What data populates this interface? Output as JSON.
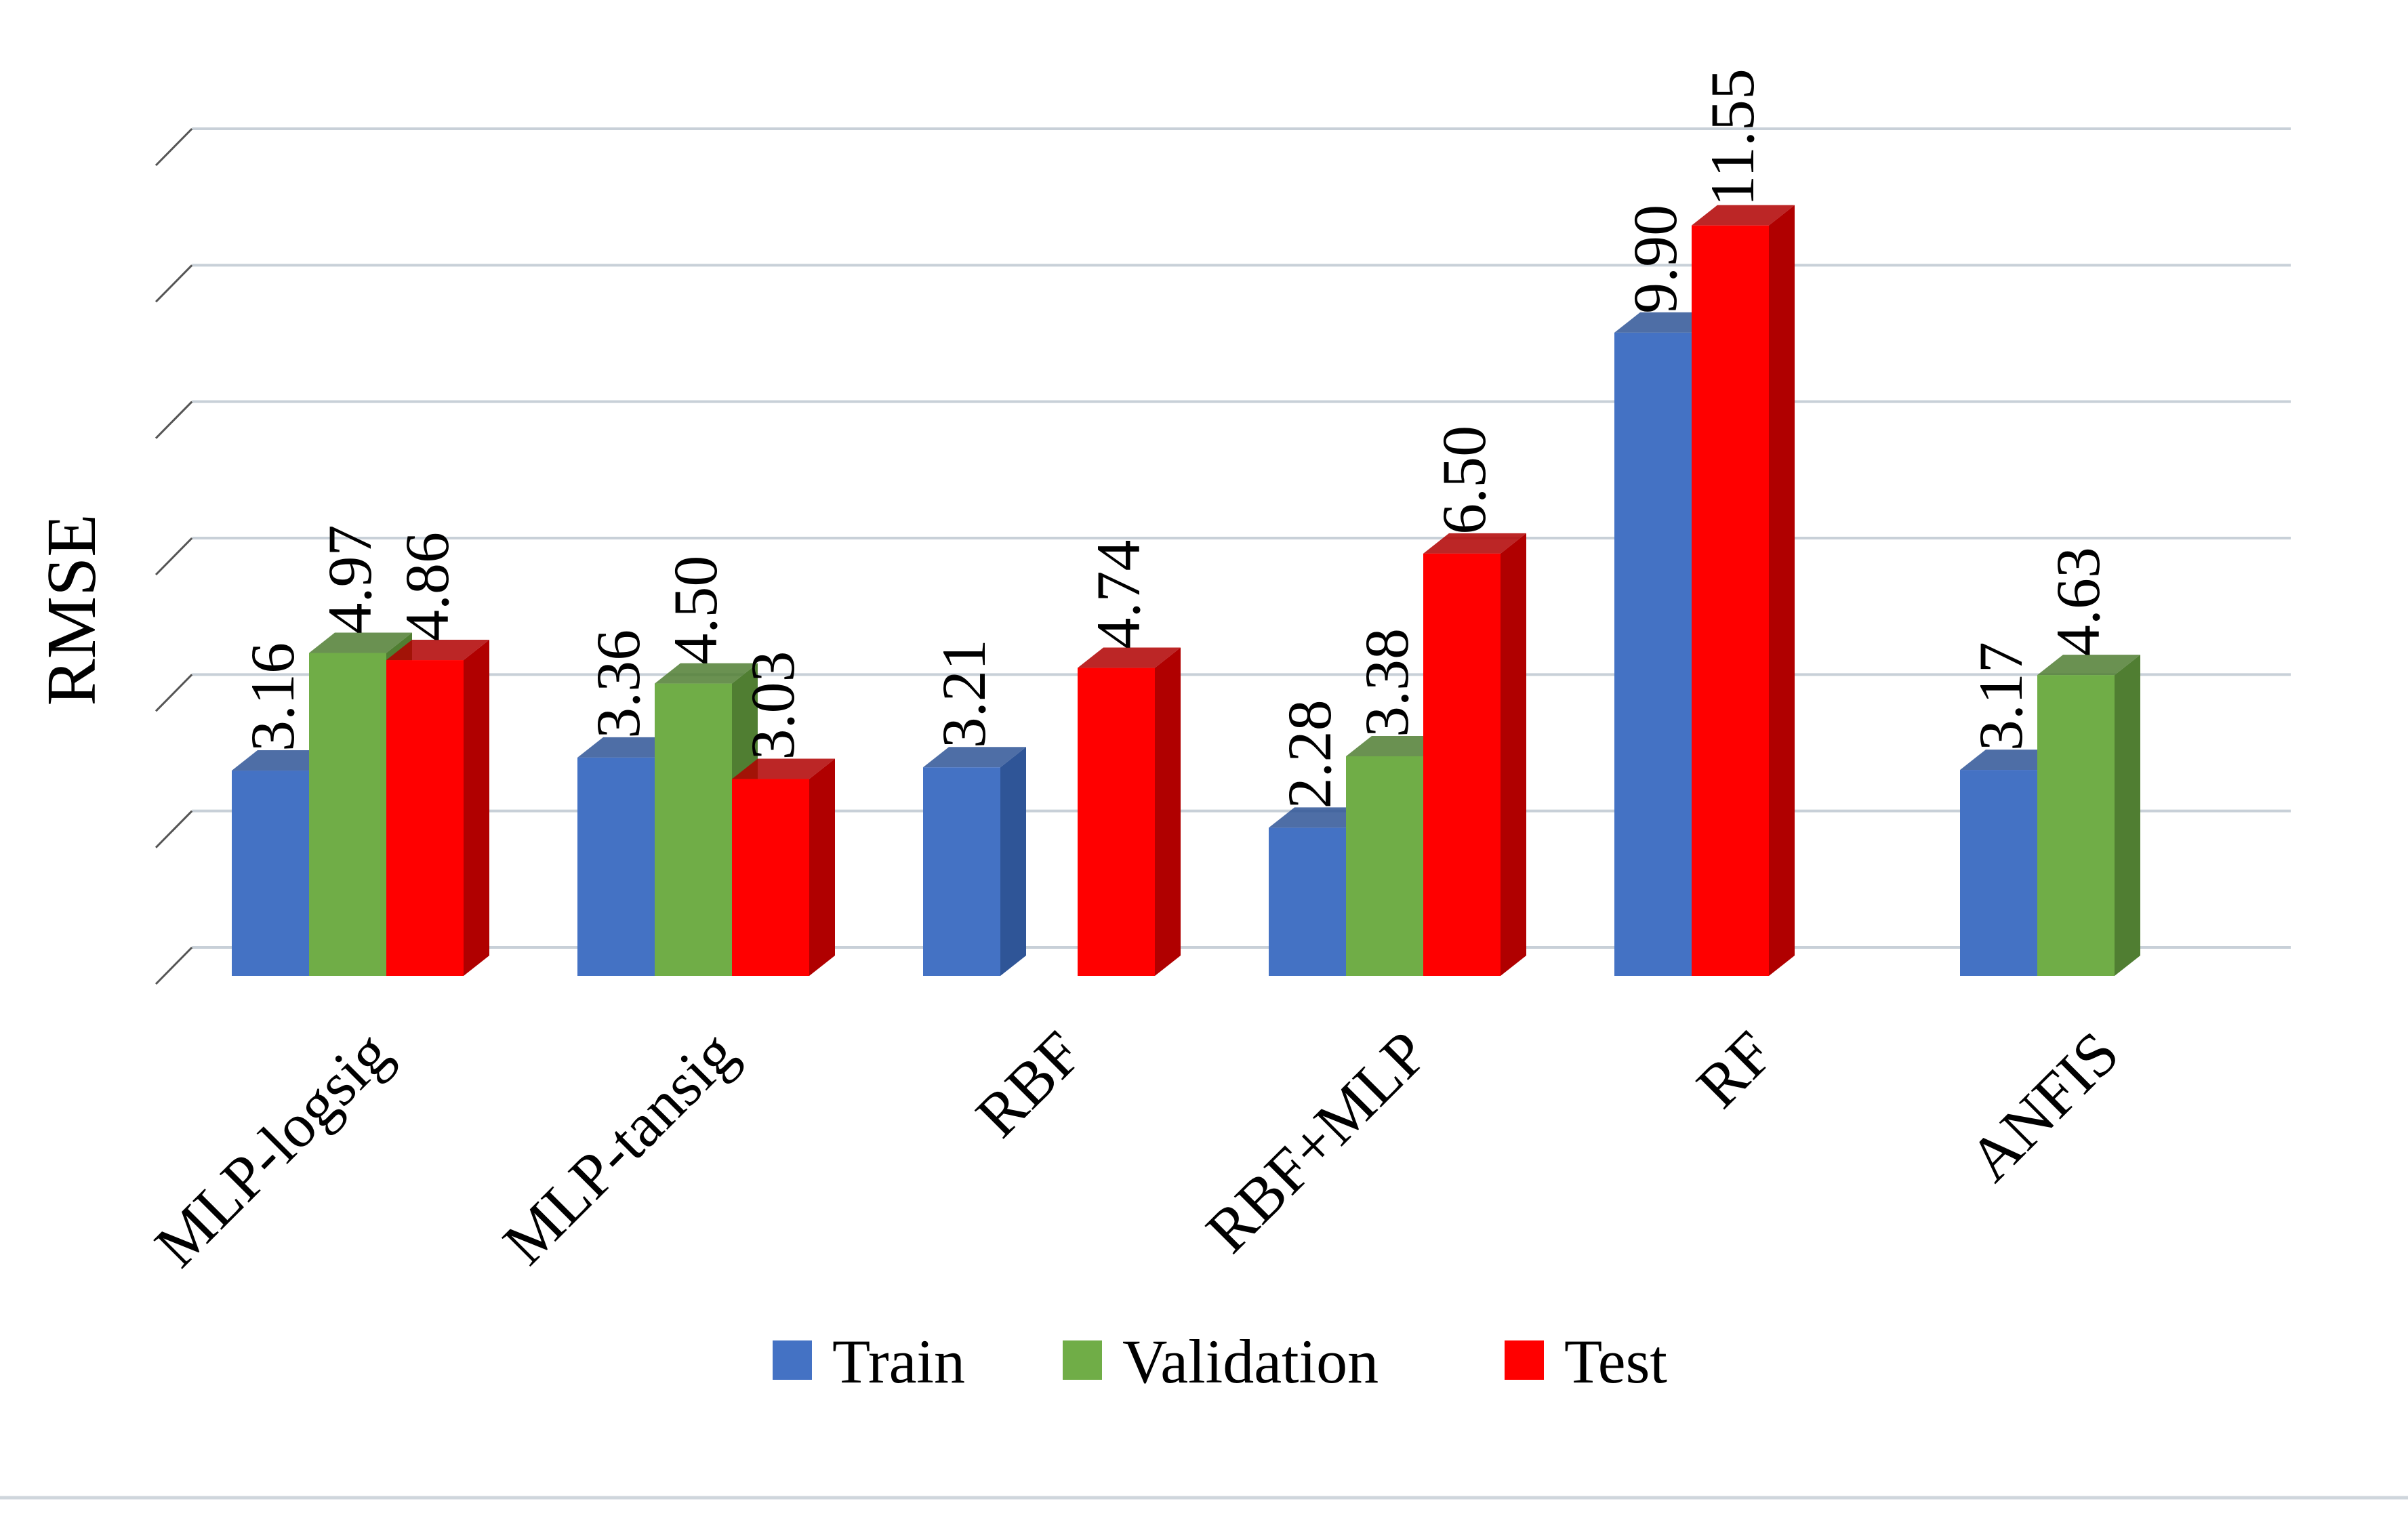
{
  "chart_data": {
    "type": "bar",
    "title": "",
    "xlabel": "",
    "ylabel": "RMSE",
    "ylim": [
      0,
      12.6
    ],
    "grid": true,
    "legend_position": "bottom",
    "categories": [
      "MLP-logsig",
      "MLP-tansig",
      "RBF",
      "RBF+MLP",
      "RF",
      "ANFIS"
    ],
    "series": [
      {
        "name": "Train",
        "color": "#4472C4",
        "side": "#2F5597",
        "values": [
          3.16,
          3.36,
          3.21,
          2.28,
          9.9,
          3.17
        ]
      },
      {
        "name": "Validation",
        "color": "#70AD47",
        "side": "#507E32",
        "values": [
          4.97,
          4.5,
          null,
          3.38,
          null,
          4.63
        ]
      },
      {
        "name": "Test",
        "color": "#FF0000",
        "side": "#B00000",
        "values": [
          4.86,
          3.03,
          4.74,
          6.5,
          11.55,
          null
        ]
      }
    ],
    "data_labels": [
      [
        "3.16",
        "3.36",
        "3.21",
        "2.28",
        "9.90",
        "3.17"
      ],
      [
        "4.97",
        "4.50",
        null,
        "3.38",
        null,
        "4.63"
      ],
      [
        "4.86",
        "3.03",
        "4.74",
        "6.50",
        "11.55",
        null
      ]
    ]
  }
}
